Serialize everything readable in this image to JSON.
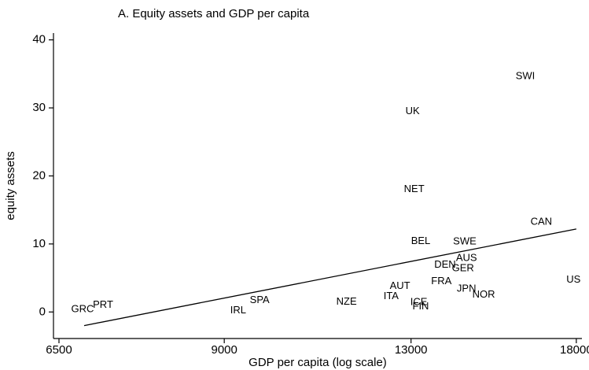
{
  "chart_data": {
    "type": "scatter",
    "title": "A. Equity assets and GDP per capita",
    "x_label": "GDP per capita (log scale)",
    "y_label": "equity assets",
    "x_scale": "log",
    "labels": [
      "GRC",
      "PRT",
      "SPA",
      "IRL",
      "NZE",
      "ITA",
      "AUT",
      "ICE",
      "FIN",
      "UK",
      "NET",
      "BEL",
      "SWE",
      "DEN",
      "AUS",
      "GER",
      "FRA",
      "JPN",
      "NOR",
      "SWI",
      "CAN",
      "US"
    ],
    "x": [
      6809,
      7089,
      9650,
      9250,
      11450,
      12500,
      12720,
      13200,
      13250,
      13040,
      13080,
      13250,
      14450,
      13900,
      14500,
      14400,
      13800,
      14500,
      15000,
      16280,
      16800,
      17900
    ],
    "y": [
      0.35,
      1.0,
      1.7,
      0.2,
      1.5,
      2.3,
      3.8,
      1.4,
      0.8,
      29.5,
      18.0,
      10.4,
      10.3,
      6.9,
      7.9,
      6.4,
      4.5,
      3.4,
      2.5,
      34.6,
      13.2,
      4.7
    ],
    "fit_line": {
      "x": [
        6830,
        18000
      ],
      "y": [
        -2.0,
        12.2
      ]
    },
    "color": "#000000",
    "xlim": [
      6430,
      18200
    ],
    "ylim": [
      -3.9,
      41
    ],
    "xticks": [
      6500,
      9000,
      13000,
      18000
    ],
    "yticks": [
      0,
      10,
      20,
      30,
      40
    ]
  }
}
